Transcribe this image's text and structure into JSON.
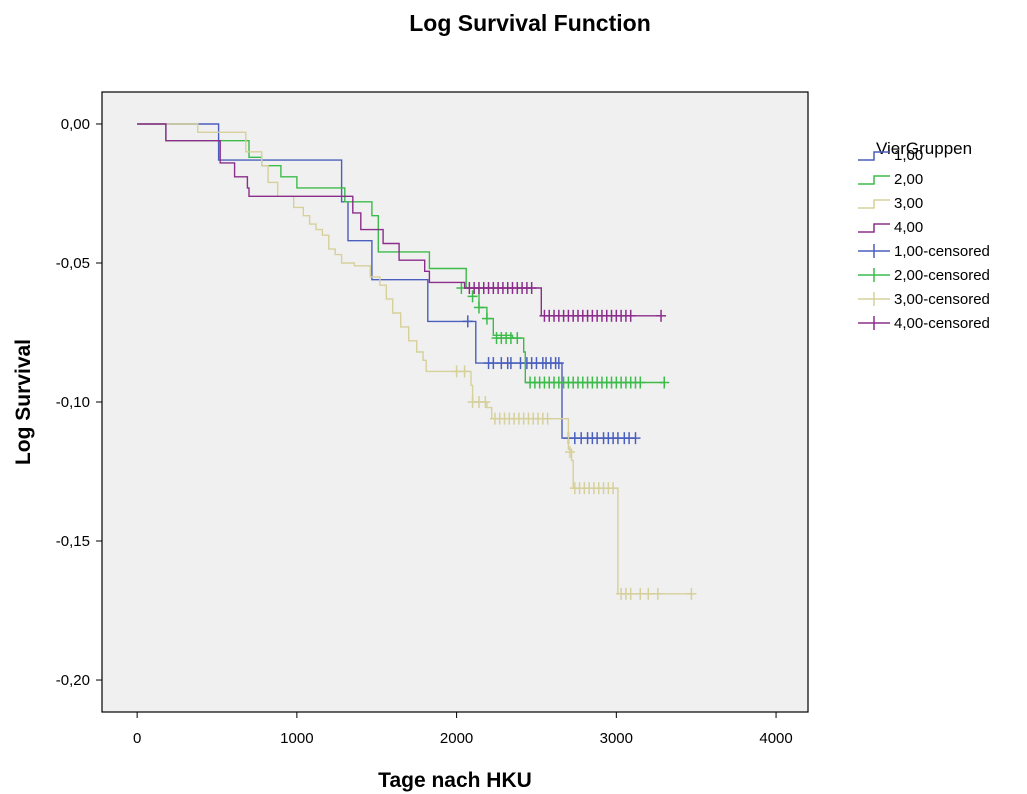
{
  "chart_data": {
    "type": "line",
    "title": "Log Survival Function",
    "xlabel": "Tage nach HKU",
    "ylabel": "Log Survival",
    "xlim": [
      -220,
      4200
    ],
    "ylim": [
      -0.2115,
      0.0115
    ],
    "xticks": [
      0,
      1000,
      2000,
      3000,
      4000
    ],
    "xtick_labels": [
      "0",
      "1000",
      "2000",
      "3000",
      "4000"
    ],
    "yticks": [
      0.0,
      -0.05,
      -0.1,
      -0.15,
      -0.2
    ],
    "ytick_labels": [
      "0,00",
      "-0,05",
      "-0,10",
      "-0,15",
      "-0,20"
    ],
    "grid": false,
    "plot_background": "#f0f0f0",
    "legend": {
      "title": "VierGruppen",
      "placement": "right",
      "entries": [
        {
          "label": "1,00",
          "color": "#4a5fbd",
          "kind": "step"
        },
        {
          "label": "2,00",
          "color": "#3dbb4a",
          "kind": "step"
        },
        {
          "label": "3,00",
          "color": "#d6d09b",
          "kind": "step"
        },
        {
          "label": "4,00",
          "color": "#8b2e8b",
          "kind": "step"
        },
        {
          "label": "1,00-censored",
          "color": "#4a5fbd",
          "kind": "censor"
        },
        {
          "label": "2,00-censored",
          "color": "#3dbb4a",
          "kind": "censor"
        },
        {
          "label": "3,00-censored",
          "color": "#d6d09b",
          "kind": "censor"
        },
        {
          "label": "4,00-censored",
          "color": "#8b2e8b",
          "kind": "censor"
        }
      ]
    },
    "series": [
      {
        "name": "1,00",
        "color": "#4a5fbd",
        "steps": [
          [
            0,
            0
          ],
          [
            510,
            -0.013
          ],
          [
            1280,
            -0.028
          ],
          [
            1320,
            -0.042
          ],
          [
            1470,
            -0.056
          ],
          [
            1820,
            -0.071
          ],
          [
            2120,
            -0.086
          ],
          [
            2660,
            -0.113
          ],
          [
            3120,
            -0.113
          ]
        ],
        "censored": [
          [
            2070,
            -0.071
          ],
          [
            2200,
            -0.086
          ],
          [
            2230,
            -0.086
          ],
          [
            2280,
            -0.086
          ],
          [
            2320,
            -0.086
          ],
          [
            2340,
            -0.086
          ],
          [
            2400,
            -0.086
          ],
          [
            2440,
            -0.086
          ],
          [
            2470,
            -0.086
          ],
          [
            2500,
            -0.086
          ],
          [
            2540,
            -0.086
          ],
          [
            2560,
            -0.086
          ],
          [
            2590,
            -0.086
          ],
          [
            2620,
            -0.086
          ],
          [
            2640,
            -0.086
          ],
          [
            2700,
            -0.113
          ],
          [
            2740,
            -0.113
          ],
          [
            2780,
            -0.113
          ],
          [
            2820,
            -0.113
          ],
          [
            2850,
            -0.113
          ],
          [
            2880,
            -0.113
          ],
          [
            2920,
            -0.113
          ],
          [
            2950,
            -0.113
          ],
          [
            2980,
            -0.113
          ],
          [
            3010,
            -0.113
          ],
          [
            3050,
            -0.113
          ],
          [
            3080,
            -0.113
          ],
          [
            3120,
            -0.113
          ]
        ]
      },
      {
        "name": "2,00",
        "color": "#3dbb4a",
        "steps": [
          [
            0,
            0
          ],
          [
            180,
            -0.006
          ],
          [
            700,
            -0.012
          ],
          [
            780,
            -0.015
          ],
          [
            900,
            -0.019
          ],
          [
            1000,
            -0.023
          ],
          [
            1300,
            -0.028
          ],
          [
            1470,
            -0.033
          ],
          [
            1510,
            -0.046
          ],
          [
            1830,
            -0.052
          ],
          [
            2060,
            -0.059
          ],
          [
            2140,
            -0.066
          ],
          [
            2190,
            -0.07
          ],
          [
            2230,
            -0.076
          ],
          [
            2350,
            -0.077
          ],
          [
            2420,
            -0.082
          ],
          [
            2430,
            -0.093
          ],
          [
            3300,
            -0.093
          ]
        ],
        "censored": [
          [
            2030,
            -0.059
          ],
          [
            2100,
            -0.062
          ],
          [
            2140,
            -0.066
          ],
          [
            2190,
            -0.07
          ],
          [
            2250,
            -0.077
          ],
          [
            2280,
            -0.077
          ],
          [
            2310,
            -0.077
          ],
          [
            2340,
            -0.077
          ],
          [
            2380,
            -0.077
          ],
          [
            2460,
            -0.093
          ],
          [
            2490,
            -0.093
          ],
          [
            2520,
            -0.093
          ],
          [
            2550,
            -0.093
          ],
          [
            2580,
            -0.093
          ],
          [
            2610,
            -0.093
          ],
          [
            2640,
            -0.093
          ],
          [
            2670,
            -0.093
          ],
          [
            2700,
            -0.093
          ],
          [
            2730,
            -0.093
          ],
          [
            2760,
            -0.093
          ],
          [
            2790,
            -0.093
          ],
          [
            2820,
            -0.093
          ],
          [
            2850,
            -0.093
          ],
          [
            2880,
            -0.093
          ],
          [
            2910,
            -0.093
          ],
          [
            2940,
            -0.093
          ],
          [
            2970,
            -0.093
          ],
          [
            3000,
            -0.093
          ],
          [
            3030,
            -0.093
          ],
          [
            3060,
            -0.093
          ],
          [
            3090,
            -0.093
          ],
          [
            3120,
            -0.093
          ],
          [
            3150,
            -0.093
          ],
          [
            3300,
            -0.093
          ]
        ]
      },
      {
        "name": "3,00",
        "color": "#d6d09b",
        "steps": [
          [
            0,
            0
          ],
          [
            380,
            -0.003
          ],
          [
            680,
            -0.01
          ],
          [
            780,
            -0.015
          ],
          [
            820,
            -0.021
          ],
          [
            880,
            -0.026
          ],
          [
            980,
            -0.03
          ],
          [
            1040,
            -0.033
          ],
          [
            1080,
            -0.036
          ],
          [
            1120,
            -0.038
          ],
          [
            1160,
            -0.04
          ],
          [
            1200,
            -0.045
          ],
          [
            1240,
            -0.047
          ],
          [
            1280,
            -0.05
          ],
          [
            1360,
            -0.051
          ],
          [
            1460,
            -0.055
          ],
          [
            1520,
            -0.058
          ],
          [
            1560,
            -0.063
          ],
          [
            1600,
            -0.068
          ],
          [
            1650,
            -0.073
          ],
          [
            1700,
            -0.078
          ],
          [
            1750,
            -0.082
          ],
          [
            1790,
            -0.085
          ],
          [
            1810,
            -0.089
          ],
          [
            2090,
            -0.094
          ],
          [
            2100,
            -0.1
          ],
          [
            2190,
            -0.102
          ],
          [
            2220,
            -0.106
          ],
          [
            2700,
            -0.117
          ],
          [
            2720,
            -0.121
          ],
          [
            2730,
            -0.131
          ],
          [
            3000,
            -0.131
          ],
          [
            3010,
            -0.169
          ],
          [
            3470,
            -0.169
          ]
        ],
        "censored": [
          [
            2000,
            -0.089
          ],
          [
            2050,
            -0.089
          ],
          [
            2100,
            -0.1
          ],
          [
            2140,
            -0.1
          ],
          [
            2180,
            -0.1
          ],
          [
            2240,
            -0.106
          ],
          [
            2270,
            -0.106
          ],
          [
            2300,
            -0.106
          ],
          [
            2330,
            -0.106
          ],
          [
            2360,
            -0.106
          ],
          [
            2390,
            -0.106
          ],
          [
            2420,
            -0.106
          ],
          [
            2450,
            -0.106
          ],
          [
            2480,
            -0.106
          ],
          [
            2510,
            -0.106
          ],
          [
            2540,
            -0.106
          ],
          [
            2570,
            -0.106
          ],
          [
            2710,
            -0.118
          ],
          [
            2740,
            -0.131
          ],
          [
            2770,
            -0.131
          ],
          [
            2800,
            -0.131
          ],
          [
            2830,
            -0.131
          ],
          [
            2860,
            -0.131
          ],
          [
            2890,
            -0.131
          ],
          [
            2920,
            -0.131
          ],
          [
            2950,
            -0.131
          ],
          [
            2980,
            -0.131
          ],
          [
            3030,
            -0.169
          ],
          [
            3060,
            -0.169
          ],
          [
            3090,
            -0.169
          ],
          [
            3150,
            -0.169
          ],
          [
            3200,
            -0.169
          ],
          [
            3260,
            -0.169
          ],
          [
            3470,
            -0.169
          ]
        ]
      },
      {
        "name": "4,00",
        "color": "#8b2e8b",
        "steps": [
          [
            0,
            0
          ],
          [
            180,
            -0.006
          ],
          [
            520,
            -0.014
          ],
          [
            610,
            -0.019
          ],
          [
            690,
            -0.023
          ],
          [
            700,
            -0.026
          ],
          [
            1350,
            -0.032
          ],
          [
            1400,
            -0.038
          ],
          [
            1540,
            -0.043
          ],
          [
            1640,
            -0.049
          ],
          [
            1800,
            -0.053
          ],
          [
            1830,
            -0.057
          ],
          [
            2050,
            -0.059
          ],
          [
            2530,
            -0.069
          ],
          [
            3280,
            -0.069
          ]
        ],
        "censored": [
          [
            2080,
            -0.059
          ],
          [
            2110,
            -0.059
          ],
          [
            2140,
            -0.059
          ],
          [
            2170,
            -0.059
          ],
          [
            2200,
            -0.059
          ],
          [
            2230,
            -0.059
          ],
          [
            2260,
            -0.059
          ],
          [
            2290,
            -0.059
          ],
          [
            2320,
            -0.059
          ],
          [
            2350,
            -0.059
          ],
          [
            2380,
            -0.059
          ],
          [
            2410,
            -0.059
          ],
          [
            2440,
            -0.059
          ],
          [
            2470,
            -0.059
          ],
          [
            2550,
            -0.069
          ],
          [
            2580,
            -0.069
          ],
          [
            2610,
            -0.069
          ],
          [
            2640,
            -0.069
          ],
          [
            2670,
            -0.069
          ],
          [
            2700,
            -0.069
          ],
          [
            2730,
            -0.069
          ],
          [
            2760,
            -0.069
          ],
          [
            2790,
            -0.069
          ],
          [
            2820,
            -0.069
          ],
          [
            2850,
            -0.069
          ],
          [
            2880,
            -0.069
          ],
          [
            2910,
            -0.069
          ],
          [
            2940,
            -0.069
          ],
          [
            2970,
            -0.069
          ],
          [
            3000,
            -0.069
          ],
          [
            3030,
            -0.069
          ],
          [
            3060,
            -0.069
          ],
          [
            3090,
            -0.069
          ],
          [
            3280,
            -0.069
          ]
        ]
      }
    ]
  }
}
